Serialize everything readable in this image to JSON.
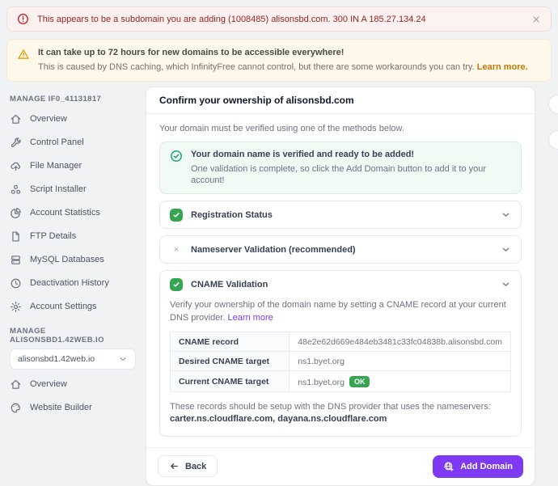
{
  "alerts": {
    "error": {
      "text": "This appears to be a subdomain you are adding (1008485) alisonsbd.com. 300 IN A 185.27.134.24"
    },
    "warning": {
      "title": "It can take up to 72 hours for new domains to be accessible everywhere!",
      "body": "This is caused by DNS caching, which InfinityFree cannot control, but there are some workarounds you can try.",
      "link": "Learn more."
    }
  },
  "sidebar": {
    "sections": [
      {
        "header": "MANAGE IF0_41131817",
        "items": [
          {
            "label": "Overview",
            "icon": "home-icon"
          },
          {
            "label": "Control Panel",
            "icon": "wrench-icon"
          },
          {
            "label": "File Manager",
            "icon": "cloud-upload-icon"
          },
          {
            "label": "Script Installer",
            "icon": "modules-icon"
          },
          {
            "label": "Account Statistics",
            "icon": "chart-pie-icon"
          },
          {
            "label": "FTP Details",
            "icon": "document-icon"
          },
          {
            "label": "MySQL Databases",
            "icon": "database-icon"
          },
          {
            "label": "Deactivation History",
            "icon": "history-icon"
          },
          {
            "label": "Account Settings",
            "icon": "gear-icon"
          }
        ]
      },
      {
        "header": "MANAGE ALISONSBD1.42WEB.IO",
        "select": "alisonsbd1.42web.io",
        "items": [
          {
            "label": "Overview",
            "icon": "home-icon"
          },
          {
            "label": "Website Builder",
            "icon": "palette-icon"
          }
        ]
      }
    ]
  },
  "main": {
    "title": "Confirm your ownership of alisonsbd.com",
    "intro": "Your domain must be verified using one of the methods below.",
    "success": {
      "title": "Your domain name is verified and ready to be added!",
      "body": "One validation is complete, so click the Add Domain button to add it to your account!"
    },
    "accordions": [
      {
        "label": "Registration Status",
        "status": "check"
      },
      {
        "label": "Nameserver Validation (recommended)",
        "status": "x"
      },
      {
        "label": "CNAME Validation",
        "status": "check"
      }
    ],
    "cname": {
      "description": "Verify your ownership of the domain name by setting a CNAME record at your current DNS provider.",
      "link": "Learn more",
      "table": {
        "rows": [
          {
            "label": "CNAME record",
            "value": "48e2e62d669e484eb3481c33fc04838b.alisonsbd.com"
          },
          {
            "label": "Desired CNAME target",
            "value": "ns1.byet.org"
          },
          {
            "label": "Current CNAME target",
            "value": "ns1.byet.org",
            "badge": "OK"
          }
        ]
      },
      "note_prefix": "These records should be setup with the DNS provider that uses the nameservers: ",
      "note_servers": "carter.ns.cloudflare.com, dayana.ns.cloudflare.com"
    },
    "footer": {
      "back_label": "Back",
      "add_label": "Add Domain"
    }
  },
  "colors": {
    "accent_purple": "#7e3af2",
    "success_green": "#35a553",
    "error_red": "#9b1c1c",
    "warning_orange": "#c27803"
  }
}
